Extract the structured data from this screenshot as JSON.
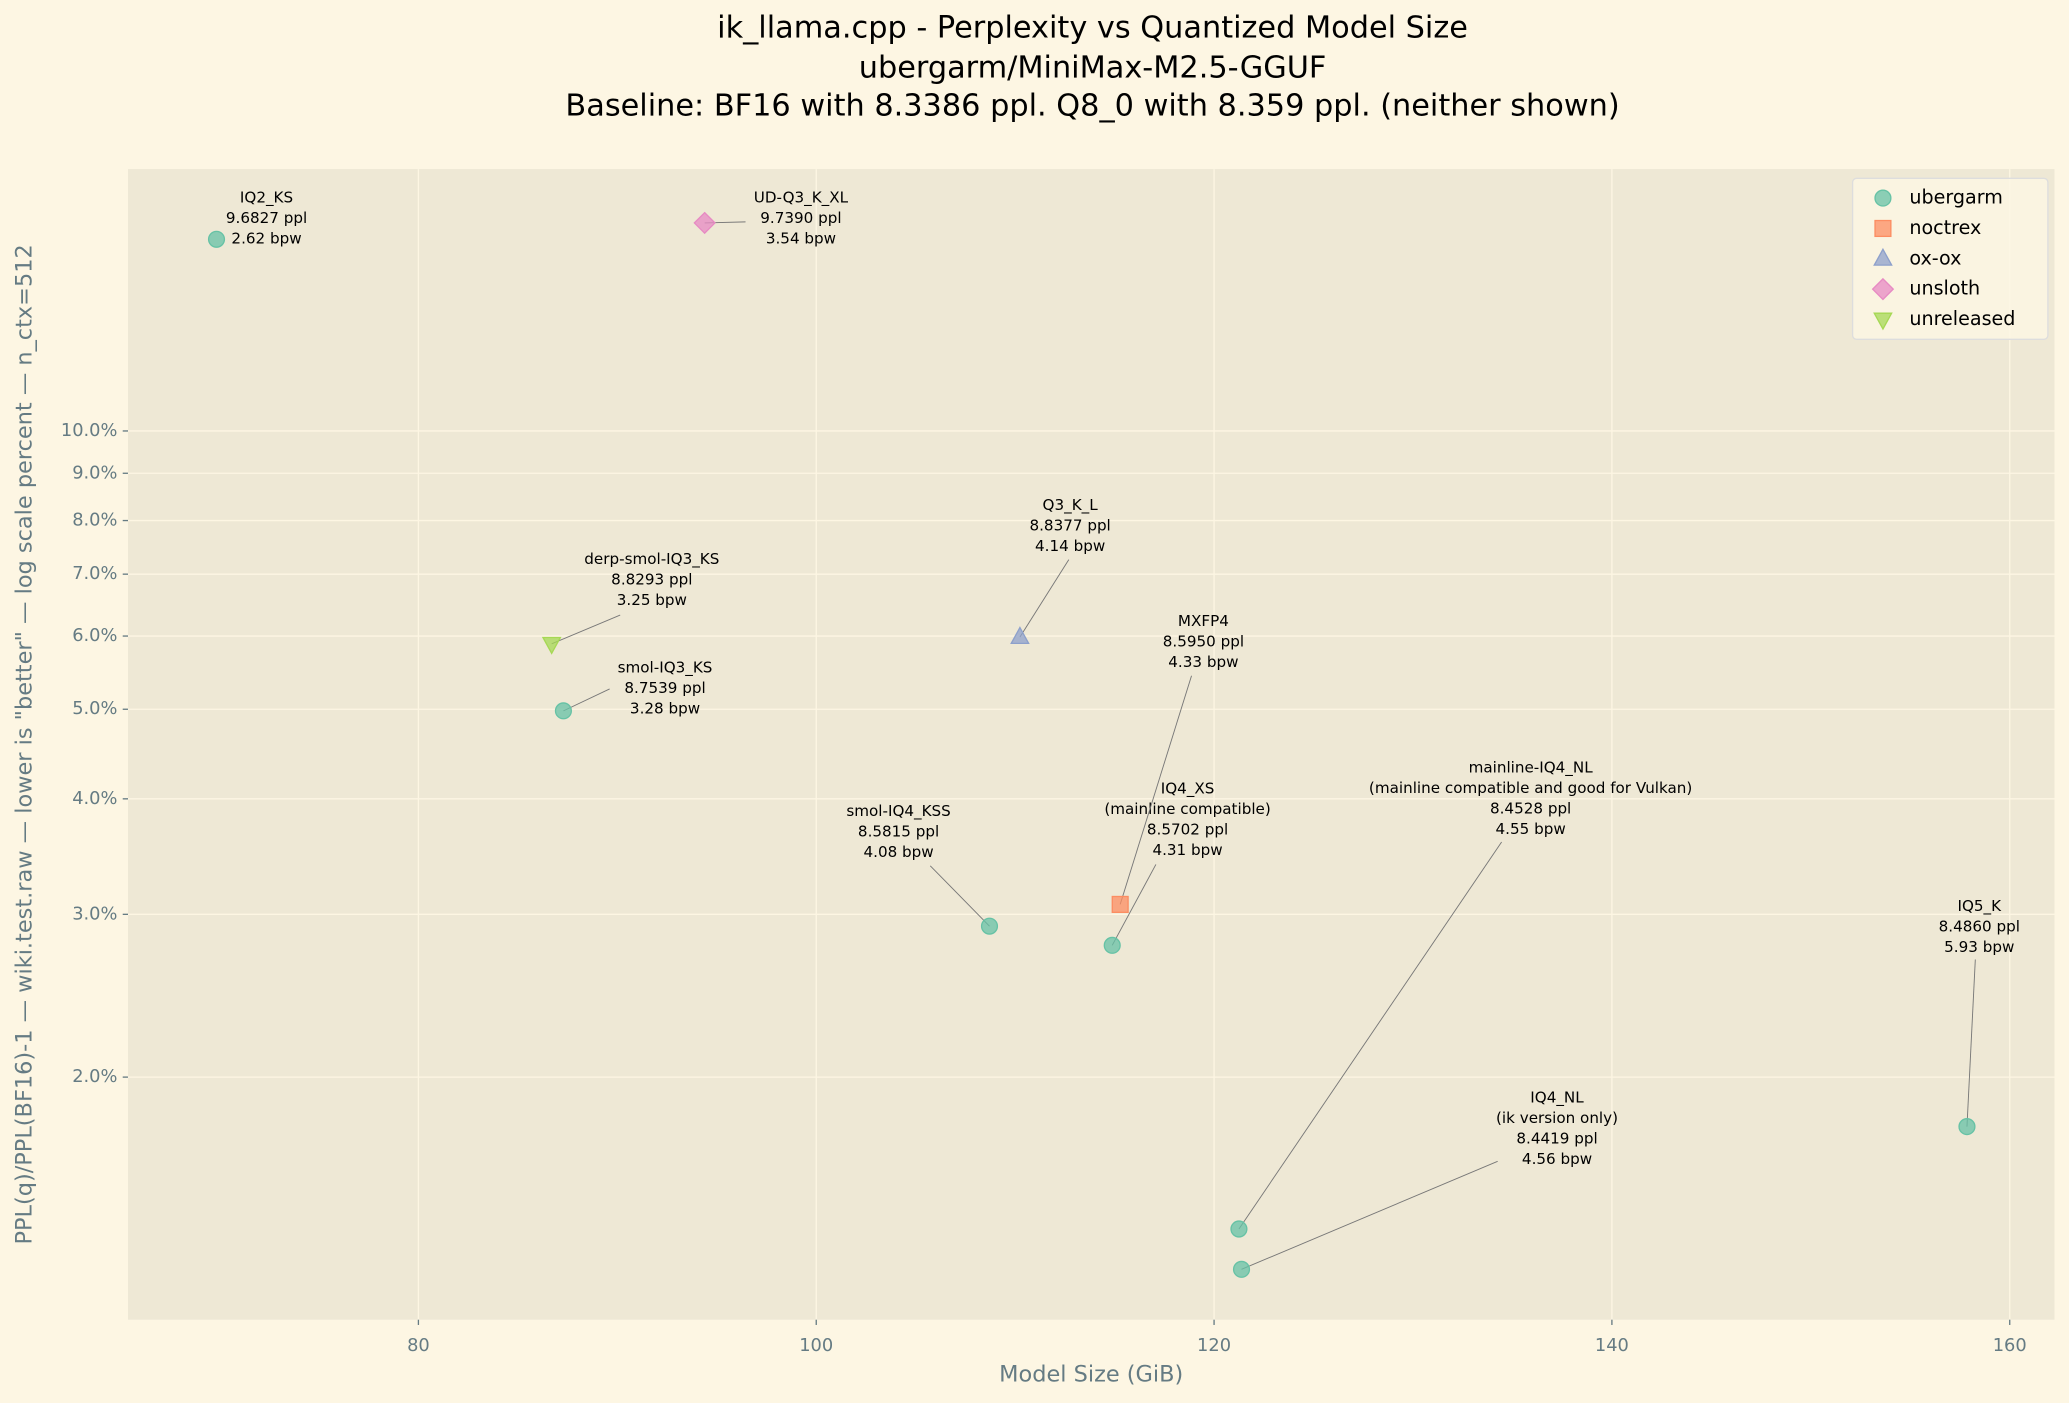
{
  "chart_data": {
    "type": "scatter",
    "title": [
      "ik_llama.cpp - Perplexity vs Quantized Model Size",
      "ubergarm/MiniMax-M2.5-GGUF",
      "Baseline: BF16 with 8.3386 ppl. Q8_0 with 8.359 ppl. (neither shown)"
    ],
    "xlabel": "Model Size (GiB)",
    "ylabel": "PPL(q)/PPL(BF16)-1 — wiki.test.raw — lower is \"better\" — log scale percent — n_ctx=512",
    "xlim": [
      65.4,
      162.25
    ],
    "xticks": [
      80,
      100,
      120,
      140,
      160
    ],
    "ylim": [
      1.093,
      19.2
    ],
    "yscale": "log",
    "yticks": [
      {
        "value": 2,
        "label": "2.0%"
      },
      {
        "value": 3,
        "label": "3.0%"
      },
      {
        "value": 4,
        "label": "4.0%"
      },
      {
        "value": 5,
        "label": "5.0%"
      },
      {
        "value": 6,
        "label": "6.0%"
      },
      {
        "value": 7,
        "label": "7.0%"
      },
      {
        "value": 8,
        "label": "8.0%"
      },
      {
        "value": 9,
        "label": "9.0%"
      },
      {
        "value": 10,
        "label": "10.0%"
      }
    ],
    "grid": true,
    "legend": "upper right",
    "series": [
      {
        "name": "ubergarm",
        "color": "#66c2a5",
        "marker": "o",
        "x": [
          69.85,
          87.29,
          108.71,
          114.88,
          121.25,
          121.38,
          157.85
        ],
        "values": [
          16.12,
          4.98,
          2.913,
          2.777,
          1.37,
          1.239,
          1.768
        ],
        "annotations": [
          [
            "IQ2_KS",
            "9.6827 ppl",
            "2.62 bpw"
          ],
          [
            "smol-IQ3_KS",
            "8.7539 ppl",
            "3.28 bpw"
          ],
          [
            "smol-IQ4_KSS",
            "8.5815 ppl",
            "4.08 bpw"
          ],
          [
            "IQ4_XS",
            "(mainline compatible)",
            "8.5702 ppl",
            "4.31 bpw"
          ],
          [
            "mainline-IQ4_NL",
            "(mainline compatible and good for Vulkan)",
            "8.4528 ppl",
            "4.55 bpw"
          ],
          [
            "IQ4_NL",
            "(ik version only)",
            "8.4419 ppl",
            "4.56 bpw"
          ],
          [
            "IQ5_K",
            "8.4860 ppl",
            "5.93 bpw"
          ]
        ]
      },
      {
        "name": "noctrex",
        "color": "#fc8d62",
        "marker": "s",
        "x": [
          115.28
        ],
        "values": [
          3.075
        ],
        "annotations": [
          [
            "MXFP4",
            "8.5950 ppl",
            "4.33 bpw"
          ]
        ]
      },
      {
        "name": "ox-ox",
        "color": "#8da0cb",
        "marker": "^",
        "x": [
          110.24
        ],
        "values": [
          5.985
        ],
        "annotations": [
          [
            "Q3_K_L",
            "8.8377 ppl",
            "4.14 bpw"
          ]
        ]
      },
      {
        "name": "unsloth",
        "color": "#e78ac3",
        "marker": "D",
        "x": [
          94.39
        ],
        "values": [
          16.79
        ],
        "annotations": [
          [
            "UD-Q3_K_XL",
            "9.7390 ppl",
            "3.54 bpw"
          ]
        ]
      },
      {
        "name": "unreleased",
        "color": "#a6d854",
        "marker": "v",
        "x": [
          86.7
        ],
        "values": [
          5.885
        ],
        "annotations": [
          [
            "derp-smol-IQ3_KS",
            "8.8293 ppl",
            "3.25 bpw"
          ]
        ]
      }
    ]
  }
}
